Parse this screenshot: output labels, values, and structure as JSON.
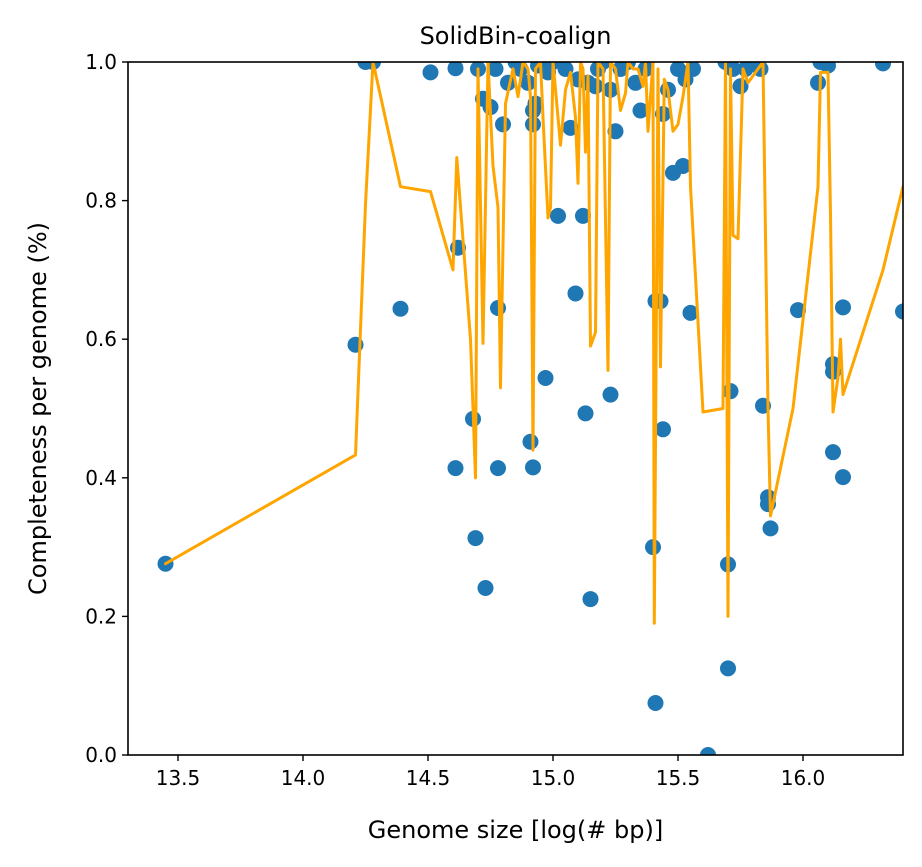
{
  "chart_data": {
    "type": "scatter",
    "title": "SolidBin-coalign",
    "xlabel": "Genome size [log(# bp)]",
    "ylabel": "Completeness per genome (%)",
    "xlim": [
      13.3,
      16.4
    ],
    "ylim": [
      0.0,
      1.0
    ],
    "x_ticks": [
      13.5,
      14.0,
      14.5,
      15.0,
      15.5,
      16.0
    ],
    "x_tick_labels": [
      "13.5",
      "14.0",
      "14.5",
      "15.0",
      "15.5",
      "16.0"
    ],
    "y_ticks": [
      0.0,
      0.2,
      0.4,
      0.6,
      0.8,
      1.0
    ],
    "y_tick_labels": [
      "0.0",
      "0.2",
      "0.4",
      "0.6",
      "0.8",
      "1.0"
    ],
    "grid": false,
    "legend": "none",
    "series": [
      {
        "kind": "scatter",
        "color": "#1f77b4",
        "points": [
          [
            13.45,
            0.276
          ],
          [
            14.21,
            0.592
          ],
          [
            14.25,
            1.0
          ],
          [
            14.28,
            1.0
          ],
          [
            14.39,
            0.644
          ],
          [
            14.51,
            0.985
          ],
          [
            14.61,
            0.991
          ],
          [
            14.61,
            0.414
          ],
          [
            14.62,
            0.732
          ],
          [
            14.68,
            0.485
          ],
          [
            14.69,
            0.313
          ],
          [
            14.7,
            0.99
          ],
          [
            14.72,
            0.947
          ],
          [
            14.73,
            0.241
          ],
          [
            14.75,
            0.935
          ],
          [
            14.77,
            0.99
          ],
          [
            14.78,
            0.414
          ],
          [
            14.78,
            0.645
          ],
          [
            14.8,
            0.91
          ],
          [
            14.82,
            0.97
          ],
          [
            14.85,
            1.0
          ],
          [
            14.87,
            0.99
          ],
          [
            14.9,
            0.97
          ],
          [
            14.91,
            0.452
          ],
          [
            14.92,
            0.415
          ],
          [
            14.92,
            0.93
          ],
          [
            14.92,
            0.91
          ],
          [
            14.93,
            0.94
          ],
          [
            14.94,
            0.995
          ],
          [
            14.97,
            0.544
          ],
          [
            14.98,
            0.985
          ],
          [
            15.0,
            1.0
          ],
          [
            15.02,
            0.778
          ],
          [
            15.05,
            0.99
          ],
          [
            15.07,
            0.905
          ],
          [
            15.09,
            0.666
          ],
          [
            15.1,
            0.975
          ],
          [
            15.12,
            0.778
          ],
          [
            15.13,
            0.493
          ],
          [
            15.14,
            0.97
          ],
          [
            15.15,
            0.225
          ],
          [
            15.17,
            0.965
          ],
          [
            15.18,
            0.99
          ],
          [
            15.2,
            1.0
          ],
          [
            15.23,
            0.52
          ],
          [
            15.23,
            0.96
          ],
          [
            15.25,
            0.9
          ],
          [
            15.27,
            0.99
          ],
          [
            15.3,
            1.0
          ],
          [
            15.33,
            0.97
          ],
          [
            15.35,
            0.93
          ],
          [
            15.37,
            0.99
          ],
          [
            15.4,
            0.3
          ],
          [
            15.41,
            0.655
          ],
          [
            15.41,
            0.075
          ],
          [
            15.43,
            0.655
          ],
          [
            15.44,
            0.47
          ],
          [
            15.44,
            0.925
          ],
          [
            15.46,
            0.96
          ],
          [
            15.48,
            0.84
          ],
          [
            15.5,
            0.99
          ],
          [
            15.52,
            0.85
          ],
          [
            15.53,
            0.975
          ],
          [
            15.55,
            0.638
          ],
          [
            15.56,
            0.99
          ],
          [
            15.62,
            0.0
          ],
          [
            15.69,
            1.0
          ],
          [
            15.7,
            0.275
          ],
          [
            15.7,
            0.125
          ],
          [
            15.71,
            0.525
          ],
          [
            15.72,
            0.99
          ],
          [
            15.75,
            0.965
          ],
          [
            15.77,
            0.99
          ],
          [
            15.8,
            1.0
          ],
          [
            15.83,
            0.99
          ],
          [
            15.84,
            0.504
          ],
          [
            15.86,
            0.372
          ],
          [
            15.86,
            0.362
          ],
          [
            15.87,
            0.327
          ],
          [
            15.98,
            0.642
          ],
          [
            16.06,
            0.97
          ],
          [
            16.07,
            1.0
          ],
          [
            16.1,
            0.995
          ],
          [
            16.12,
            0.564
          ],
          [
            16.12,
            0.553
          ],
          [
            16.12,
            0.437
          ],
          [
            16.16,
            0.646
          ],
          [
            16.16,
            0.401
          ],
          [
            16.32,
            0.998
          ],
          [
            16.4,
            0.64
          ]
        ]
      },
      {
        "kind": "line",
        "color": "#ffa500",
        "points": [
          [
            13.45,
            0.276
          ],
          [
            14.21,
            0.433
          ],
          [
            14.25,
            0.795
          ],
          [
            14.28,
            1.0
          ],
          [
            14.39,
            0.82
          ],
          [
            14.51,
            0.813
          ],
          [
            14.6,
            0.7
          ],
          [
            14.615,
            0.862
          ],
          [
            14.67,
            0.6
          ],
          [
            14.69,
            0.4
          ],
          [
            14.7,
            0.99
          ],
          [
            14.72,
            0.594
          ],
          [
            14.74,
            1.0
          ],
          [
            14.76,
            0.85
          ],
          [
            14.78,
            0.79
          ],
          [
            14.79,
            0.53
          ],
          [
            14.81,
            0.94
          ],
          [
            14.84,
            0.99
          ],
          [
            14.86,
            0.95
          ],
          [
            14.88,
            1.0
          ],
          [
            14.9,
            0.99
          ],
          [
            14.91,
            0.95
          ],
          [
            14.92,
            0.44
          ],
          [
            14.93,
            0.99
          ],
          [
            14.95,
            1.0
          ],
          [
            14.96,
            0.92
          ],
          [
            14.98,
            0.775
          ],
          [
            14.99,
            0.79
          ],
          [
            15.0,
            1.0
          ],
          [
            15.03,
            0.88
          ],
          [
            15.05,
            0.96
          ],
          [
            15.07,
            0.985
          ],
          [
            15.09,
            0.92
          ],
          [
            15.1,
            0.825
          ],
          [
            15.11,
            1.0
          ],
          [
            15.12,
            0.99
          ],
          [
            15.13,
            0.87
          ],
          [
            15.14,
            0.98
          ],
          [
            15.15,
            0.59
          ],
          [
            15.17,
            0.61
          ],
          [
            15.18,
            1.0
          ],
          [
            15.2,
            0.99
          ],
          [
            15.22,
            0.555
          ],
          [
            15.23,
            1.0
          ],
          [
            15.25,
            0.99
          ],
          [
            15.27,
            0.93
          ],
          [
            15.29,
            0.955
          ],
          [
            15.3,
            1.0
          ],
          [
            15.32,
            0.99
          ],
          [
            15.34,
            0.99
          ],
          [
            15.36,
            0.965
          ],
          [
            15.37,
            1.0
          ],
          [
            15.38,
            0.9
          ],
          [
            15.4,
            1.0
          ],
          [
            15.405,
            0.19
          ],
          [
            15.42,
            0.99
          ],
          [
            15.43,
            0.56
          ],
          [
            15.445,
            0.975
          ],
          [
            15.46,
            0.96
          ],
          [
            15.48,
            0.9
          ],
          [
            15.5,
            0.91
          ],
          [
            15.52,
            0.95
          ],
          [
            15.54,
            1.0
          ],
          [
            15.55,
            0.82
          ],
          [
            15.6,
            0.495
          ],
          [
            15.68,
            0.5
          ],
          [
            15.69,
            1.0
          ],
          [
            15.7,
            0.2
          ],
          [
            15.71,
            0.99
          ],
          [
            15.72,
            0.75
          ],
          [
            15.74,
            0.745
          ],
          [
            15.76,
            0.99
          ],
          [
            15.78,
            0.97
          ],
          [
            15.84,
            1.0
          ],
          [
            15.86,
            0.5
          ],
          [
            15.87,
            0.345
          ],
          [
            15.96,
            0.5
          ],
          [
            16.06,
            0.82
          ],
          [
            16.07,
            0.985
          ],
          [
            16.1,
            0.985
          ],
          [
            16.11,
            0.78
          ],
          [
            16.12,
            0.495
          ],
          [
            16.14,
            0.545
          ],
          [
            16.15,
            0.6
          ],
          [
            16.16,
            0.52
          ],
          [
            16.32,
            0.7
          ],
          [
            16.4,
            0.82
          ]
        ]
      }
    ]
  }
}
